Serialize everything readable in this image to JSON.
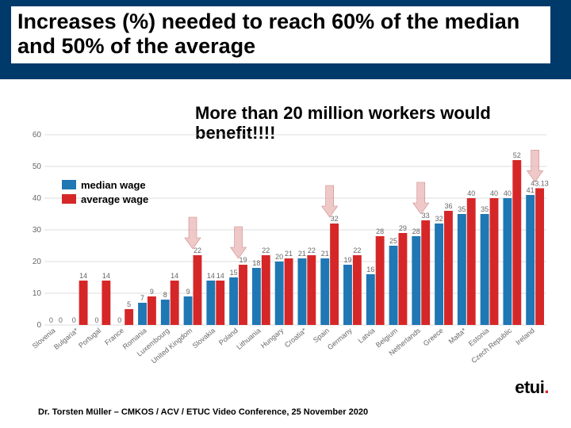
{
  "title": "Increases (%) needed to reach 60% of the median and 50% of the average",
  "callout": "More than 20 million workers would benefit!!!!",
  "legend": {
    "series1": {
      "label": "median wage",
      "color": "#1f77b4"
    },
    "series2": {
      "label": "average wage",
      "color": "#d62728"
    }
  },
  "footer": "Dr. Torsten Müller – CMKOS / ACV / ETUC Video Conference, 25 November 2020",
  "logo_text": "etui",
  "chart": {
    "type": "grouped-bar",
    "ylim": [
      0,
      60
    ],
    "ytick_step": 10,
    "bar_colors": {
      "median": "#1f77b4",
      "average": "#d62728"
    },
    "grid_color": "#bbbbbb",
    "background": "#ffffff",
    "value_font": 9,
    "xlabel_font": 9,
    "bar_gap": 1,
    "group_gap": 6,
    "arrow_countries": [
      "United Kingdom",
      "Poland",
      "Spain",
      "Netherlands",
      "Ireland"
    ],
    "data": [
      {
        "country": "Slovenia",
        "median": 0,
        "average": 0
      },
      {
        "country": "Bulgaria*",
        "median": 0,
        "average": 14
      },
      {
        "country": "Portugal",
        "median": 0,
        "average": 14
      },
      {
        "country": "France",
        "median": 0,
        "average": 5
      },
      {
        "country": "Romania",
        "median": 7,
        "average": 9
      },
      {
        "country": "Luxembourg",
        "median": 8,
        "average": 14
      },
      {
        "country": "United Kingdom",
        "median": 9,
        "average": 22
      },
      {
        "country": "Slovakia",
        "median": 14,
        "average": 14
      },
      {
        "country": "Poland",
        "median": 15,
        "average": 19
      },
      {
        "country": "Lithuania",
        "median": 18,
        "average": 22
      },
      {
        "country": "Hungary",
        "median": 20,
        "average": 21
      },
      {
        "country": "Croatia*",
        "median": 21,
        "average": 22
      },
      {
        "country": "Spain",
        "median": 21,
        "average": 32
      },
      {
        "country": "Germany",
        "median": 19,
        "average": 22
      },
      {
        "country": "Latvia",
        "median": 16,
        "average": 28
      },
      {
        "country": "Belgium",
        "median": 25,
        "average": 29
      },
      {
        "country": "Netherlands",
        "median": 28,
        "average": 33
      },
      {
        "country": "Greece",
        "median": 32,
        "average": 36
      },
      {
        "country": "Malta*",
        "median": 35,
        "average": 40
      },
      {
        "country": "Estonia",
        "median": 35,
        "average": 40
      },
      {
        "country": "Czech Republic",
        "median": 40,
        "average": 52
      },
      {
        "country": "Ireland",
        "median": 41,
        "average": 43.13,
        "avg_label": "43.13"
      }
    ]
  }
}
